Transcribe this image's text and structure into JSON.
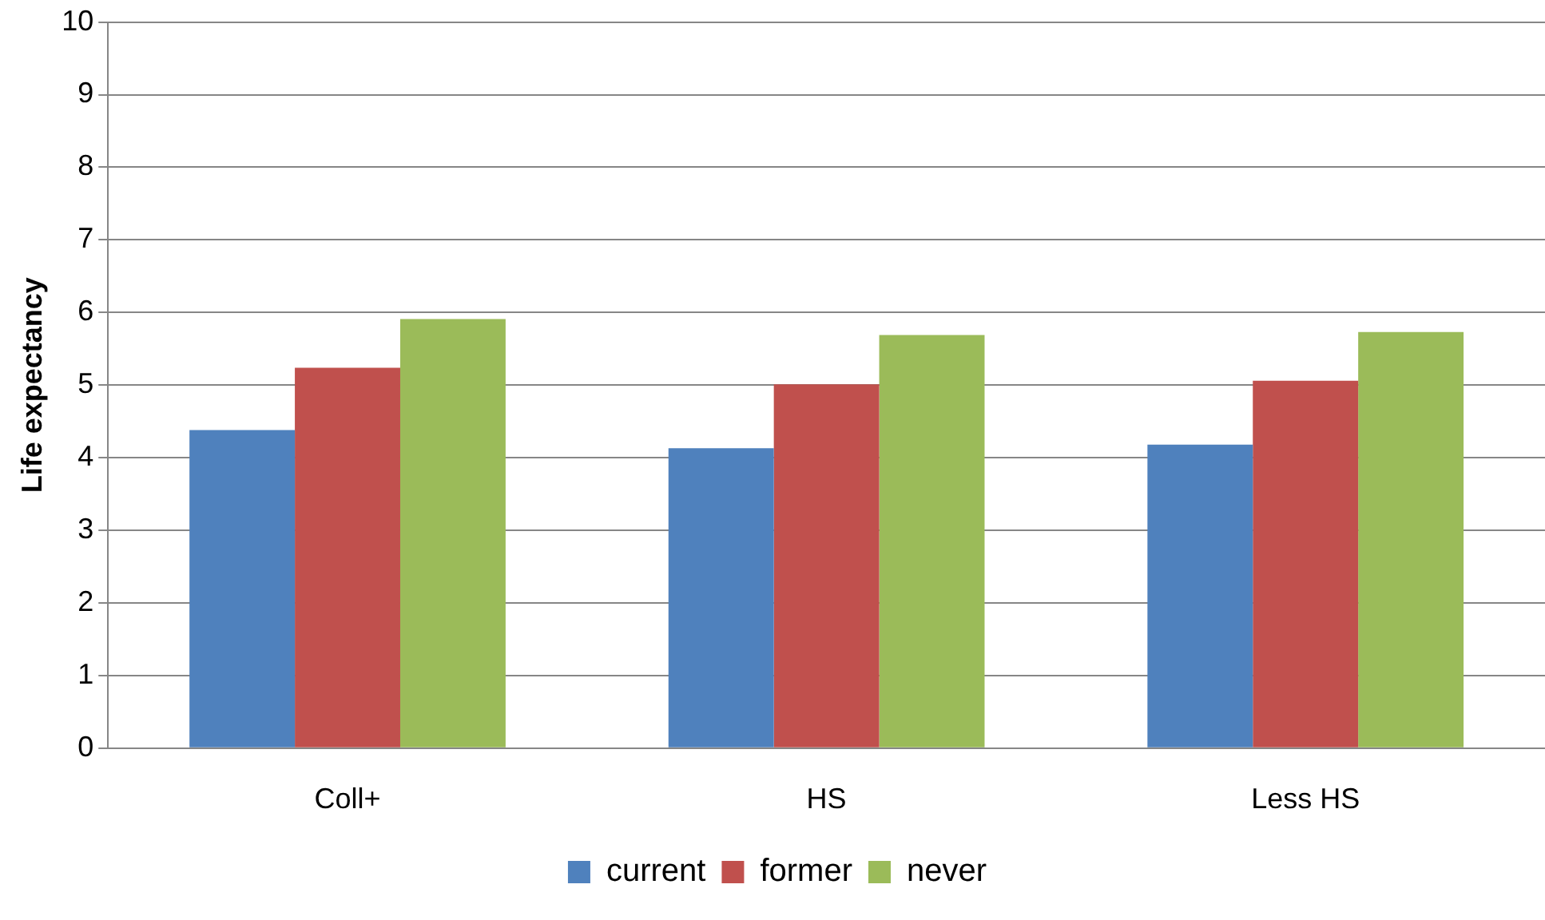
{
  "chart_data": {
    "type": "bar",
    "ylabel": "Life expectancy",
    "categories": [
      "Coll+",
      "HS",
      "Less HS"
    ],
    "series": [
      {
        "name": "current",
        "color": "#4f81bd",
        "values": [
          4.38,
          4.13,
          4.18
        ]
      },
      {
        "name": "former",
        "color": "#c0504d",
        "values": [
          5.24,
          5.01,
          5.06
        ]
      },
      {
        "name": "never",
        "color": "#9bbb59",
        "values": [
          5.91,
          5.69,
          5.73
        ]
      }
    ],
    "ylim": [
      0,
      10
    ],
    "yticks": [
      0,
      1,
      2,
      3,
      4,
      5,
      6,
      7,
      8,
      9,
      10
    ],
    "grid": "y",
    "legend": "bottom"
  }
}
